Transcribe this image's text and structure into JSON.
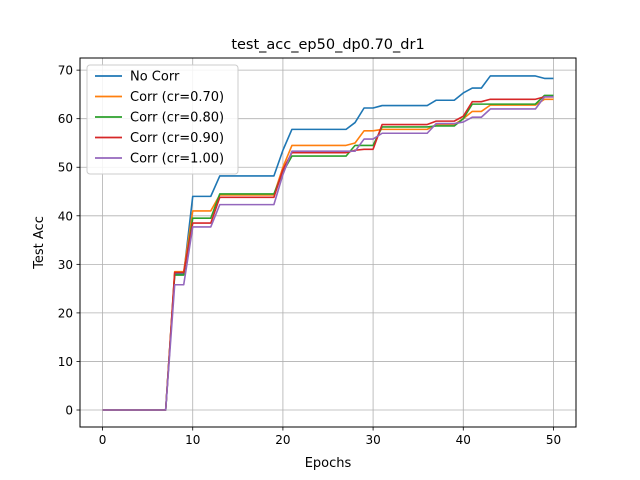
{
  "chart_data": {
    "type": "line",
    "title": "test_acc_ep50_dp0.70_dr1",
    "xlabel": "Epochs",
    "ylabel": "Test Acc",
    "xlim": [
      -2.5,
      52.5
    ],
    "ylim": [
      -3.5,
      72.5
    ],
    "xticks": [
      0,
      10,
      20,
      30,
      40,
      50
    ],
    "yticks": [
      0,
      10,
      20,
      30,
      40,
      50,
      60,
      70
    ],
    "grid": true,
    "legend_position": "top-left",
    "x": [
      0,
      1,
      2,
      3,
      4,
      5,
      6,
      7,
      8,
      9,
      10,
      11,
      12,
      13,
      14,
      15,
      16,
      17,
      18,
      19,
      20,
      21,
      22,
      23,
      24,
      25,
      26,
      27,
      28,
      29,
      30,
      31,
      32,
      33,
      34,
      35,
      36,
      37,
      38,
      39,
      40,
      41,
      42,
      43,
      44,
      45,
      46,
      47,
      48,
      49,
      50
    ],
    "series": [
      {
        "name": "No Corr",
        "color": "#1f77b4",
        "values": [
          0,
          0,
          0,
          0,
          0,
          0,
          0,
          0,
          28.0,
          28.0,
          44.0,
          44.0,
          44.0,
          48.2,
          48.2,
          48.2,
          48.2,
          48.2,
          48.2,
          48.2,
          53.5,
          57.8,
          57.8,
          57.8,
          57.8,
          57.8,
          57.8,
          57.8,
          59.2,
          62.2,
          62.2,
          62.7,
          62.7,
          62.7,
          62.7,
          62.7,
          62.7,
          63.8,
          63.8,
          63.8,
          65.3,
          66.3,
          66.3,
          68.8,
          68.8,
          68.8,
          68.8,
          68.8,
          68.8,
          68.3,
          68.3
        ]
      },
      {
        "name": "Corr (cr=0.70)",
        "color": "#ff7f0e",
        "values": [
          0,
          0,
          0,
          0,
          0,
          0,
          0,
          0,
          28.5,
          28.5,
          41.0,
          41.0,
          41.0,
          44.3,
          44.3,
          44.3,
          44.3,
          44.3,
          44.3,
          44.3,
          50.0,
          54.5,
          54.5,
          54.5,
          54.5,
          54.5,
          54.5,
          54.5,
          55.0,
          57.5,
          57.5,
          57.8,
          57.8,
          57.8,
          57.8,
          57.8,
          57.8,
          58.8,
          58.8,
          58.8,
          60.0,
          61.5,
          61.5,
          62.8,
          62.8,
          62.8,
          62.8,
          62.8,
          62.8,
          64.0,
          64.0
        ]
      },
      {
        "name": "Corr (cr=0.80)",
        "color": "#2ca02c",
        "values": [
          0,
          0,
          0,
          0,
          0,
          0,
          0,
          0,
          27.8,
          27.8,
          39.5,
          39.5,
          39.5,
          44.5,
          44.5,
          44.5,
          44.5,
          44.5,
          44.5,
          44.5,
          49.0,
          52.3,
          52.3,
          52.3,
          52.3,
          52.3,
          52.3,
          52.3,
          54.5,
          54.5,
          54.5,
          58.3,
          58.3,
          58.3,
          58.3,
          58.3,
          58.3,
          58.5,
          58.5,
          58.5,
          60.0,
          63.0,
          63.0,
          63.0,
          63.0,
          63.0,
          63.0,
          63.0,
          63.0,
          64.8,
          64.8
        ]
      },
      {
        "name": "Corr (cr=0.90)",
        "color": "#d62728",
        "values": [
          0,
          0,
          0,
          0,
          0,
          0,
          0,
          0,
          28.3,
          28.3,
          38.5,
          38.5,
          38.5,
          43.8,
          43.8,
          43.8,
          43.8,
          43.8,
          43.8,
          43.8,
          49.5,
          53.0,
          53.0,
          53.0,
          53.0,
          53.0,
          53.0,
          53.0,
          53.5,
          53.7,
          53.7,
          58.8,
          58.8,
          58.8,
          58.8,
          58.8,
          58.8,
          59.5,
          59.5,
          59.5,
          60.5,
          63.5,
          63.5,
          64.0,
          64.0,
          64.0,
          64.0,
          64.0,
          64.0,
          64.5,
          64.5
        ]
      },
      {
        "name": "Corr (cr=1.00)",
        "color": "#9467bd",
        "values": [
          0,
          0,
          0,
          0,
          0,
          0,
          0,
          0,
          25.8,
          25.8,
          37.7,
          37.7,
          37.7,
          42.3,
          42.3,
          42.3,
          42.3,
          42.3,
          42.3,
          42.3,
          48.5,
          53.3,
          53.3,
          53.3,
          53.3,
          53.3,
          53.3,
          53.3,
          53.3,
          55.8,
          55.8,
          57.0,
          57.0,
          57.0,
          57.0,
          57.0,
          57.0,
          59.0,
          59.0,
          59.0,
          59.3,
          60.3,
          60.3,
          62.0,
          62.0,
          62.0,
          62.0,
          62.0,
          62.0,
          64.5,
          64.5
        ]
      }
    ]
  }
}
